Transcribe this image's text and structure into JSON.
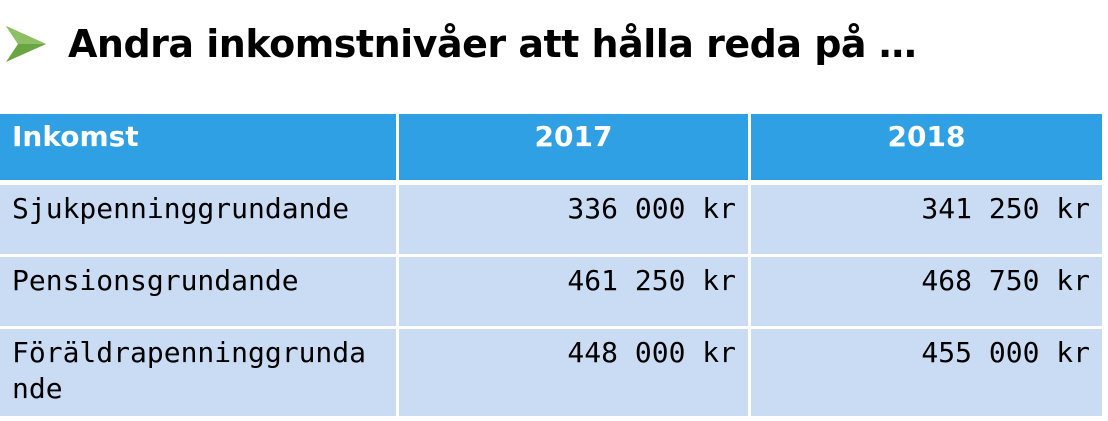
{
  "slide": {
    "title": "Andra inkomstnivåer att hålla reda på …",
    "bullet_icon": "arrow-bullet-icon",
    "accent_color": "#6aa541"
  },
  "table": {
    "header_color": "#2fa0e4",
    "row_color": "#c9dcf3",
    "columns": [
      "Inkomst",
      "2017",
      "2018"
    ],
    "rows": [
      {
        "label": "Sjukpenninggrundande",
        "y2017": "336 000 kr",
        "y2018": "341 250 kr"
      },
      {
        "label": "Pensionsgrundande",
        "y2017": "461 250 kr",
        "y2018": "468 750 kr"
      },
      {
        "label": "Föräldrapenninggrundande",
        "y2017": "448 000 kr",
        "y2018": "455 000 kr"
      }
    ]
  }
}
